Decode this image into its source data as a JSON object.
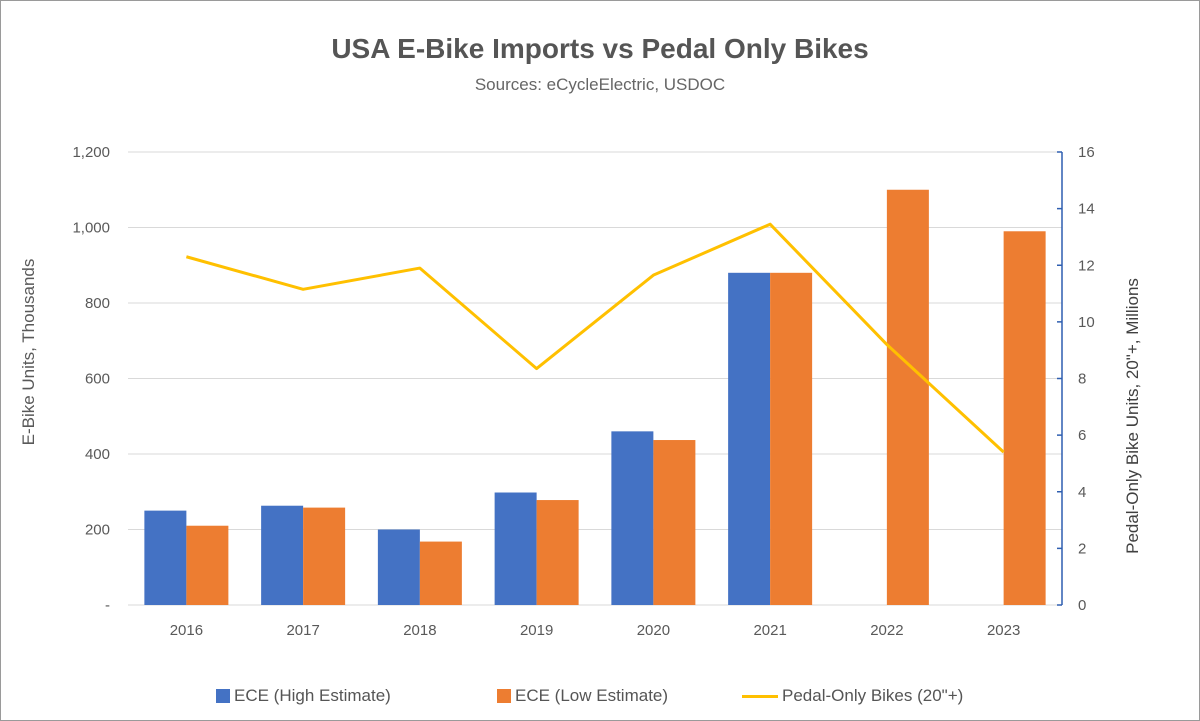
{
  "colors": {
    "high": "#4472C4",
    "low": "#ED7D31",
    "pedal": "#FFC000",
    "grid": "#D9D9D9",
    "right_axis": "#2F5FB0",
    "text": "#595959"
  },
  "chart_data": {
    "type": "bar",
    "title": "USA E-Bike Imports vs Pedal Only Bikes",
    "subtitle": "Sources: eCycleElectric, USDOC",
    "categories": [
      "2016",
      "2017",
      "2018",
      "2019",
      "2020",
      "2021",
      "2022",
      "2023"
    ],
    "series": [
      {
        "name": "ECE (High Estimate)",
        "type": "bar",
        "axis": "left",
        "values": [
          250,
          263,
          200,
          298,
          460,
          880,
          null,
          null
        ]
      },
      {
        "name": "ECE (Low Estimate)",
        "type": "bar",
        "axis": "left",
        "values": [
          210,
          258,
          168,
          278,
          437,
          880,
          1100,
          990
        ]
      },
      {
        "name": "Pedal-Only Bikes (20\"+)",
        "type": "line",
        "axis": "right",
        "values": [
          12.3,
          11.15,
          11.9,
          8.35,
          11.65,
          13.45,
          9.2,
          5.4
        ]
      }
    ],
    "ylabel": "E-Bike Units, Thousands",
    "y2label": "Pedal-Only Bike Units, 20\"+, Millions",
    "ylim": [
      0,
      1200
    ],
    "y2lim": [
      0,
      16
    ],
    "yticks": [
      "-",
      "200",
      "400",
      "600",
      "800",
      "1,000",
      "1,200"
    ],
    "y2ticks": [
      "0",
      "2",
      "4",
      "6",
      "8",
      "10",
      "12",
      "14",
      "16"
    ],
    "grid": true,
    "legend": "bottom"
  }
}
